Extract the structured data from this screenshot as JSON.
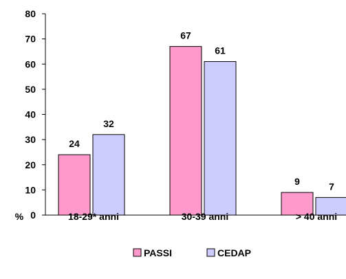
{
  "chart_data": {
    "type": "bar",
    "ylabel": "%",
    "ylim": [
      0,
      80
    ],
    "yticks": [
      "0",
      "10",
      "20",
      "30",
      "40",
      "50",
      "60",
      "70",
      "80"
    ],
    "categories": [
      "18-29* anni",
      "30-39 anni",
      "> 40 anni"
    ],
    "series": [
      {
        "name": "PASSI",
        "values": [
          24,
          67,
          9
        ],
        "color": "#FF99CC"
      },
      {
        "name": "CEDAP",
        "values": [
          32,
          61,
          7
        ],
        "color": "#CCCCFF"
      }
    ],
    "grid": false,
    "legend_position": "bottom"
  }
}
